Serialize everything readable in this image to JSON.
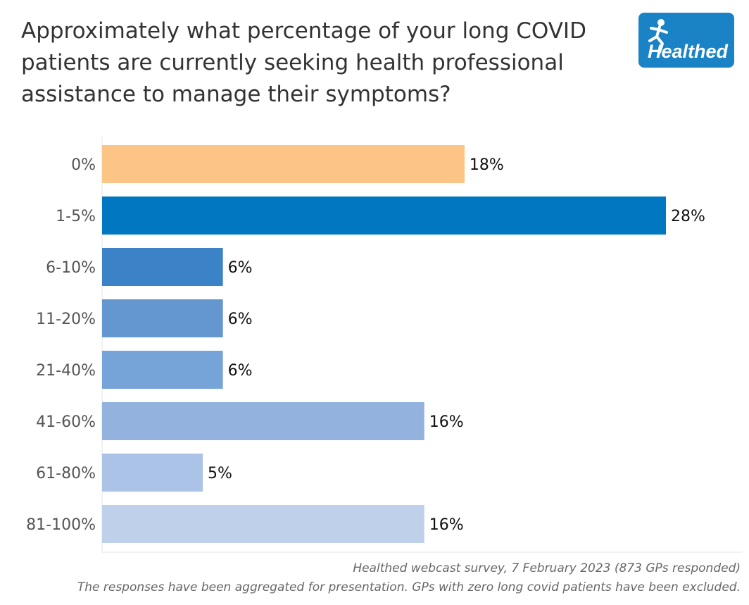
{
  "title": "Approximately what percentage of your long COVID patients are currently seeking health professional assistance to manage their symptoms?",
  "logo": {
    "text": "Healthed",
    "color": "#1a83c6",
    "icon": "running-figure-icon"
  },
  "chart_data": {
    "type": "bar",
    "orientation": "horizontal",
    "categories": [
      "0%",
      "1-5%",
      "6-10%",
      "11-20%",
      "21-40%",
      "41-60%",
      "61-80%",
      "81-100%"
    ],
    "values": [
      18,
      28,
      6,
      6,
      6,
      16,
      5,
      16
    ],
    "data_labels": [
      "18%",
      "28%",
      "6%",
      "6%",
      "6%",
      "16%",
      "5%",
      "16%"
    ],
    "colors": [
      "#fdc585",
      "#0077c0",
      "#3b82c6",
      "#6497cf",
      "#76a3d8",
      "#93b2de",
      "#abc3e6",
      "#bfd0ea"
    ],
    "xlim": [
      0,
      28
    ],
    "grid": false,
    "legend": "none",
    "xlabel": "",
    "ylabel": ""
  },
  "footer": {
    "source": "Healthed webcast survey, 7 February 2023 (873 GPs responded)",
    "note": "The responses have been aggregated for presentation. GPs with zero long covid patients have been excluded."
  }
}
